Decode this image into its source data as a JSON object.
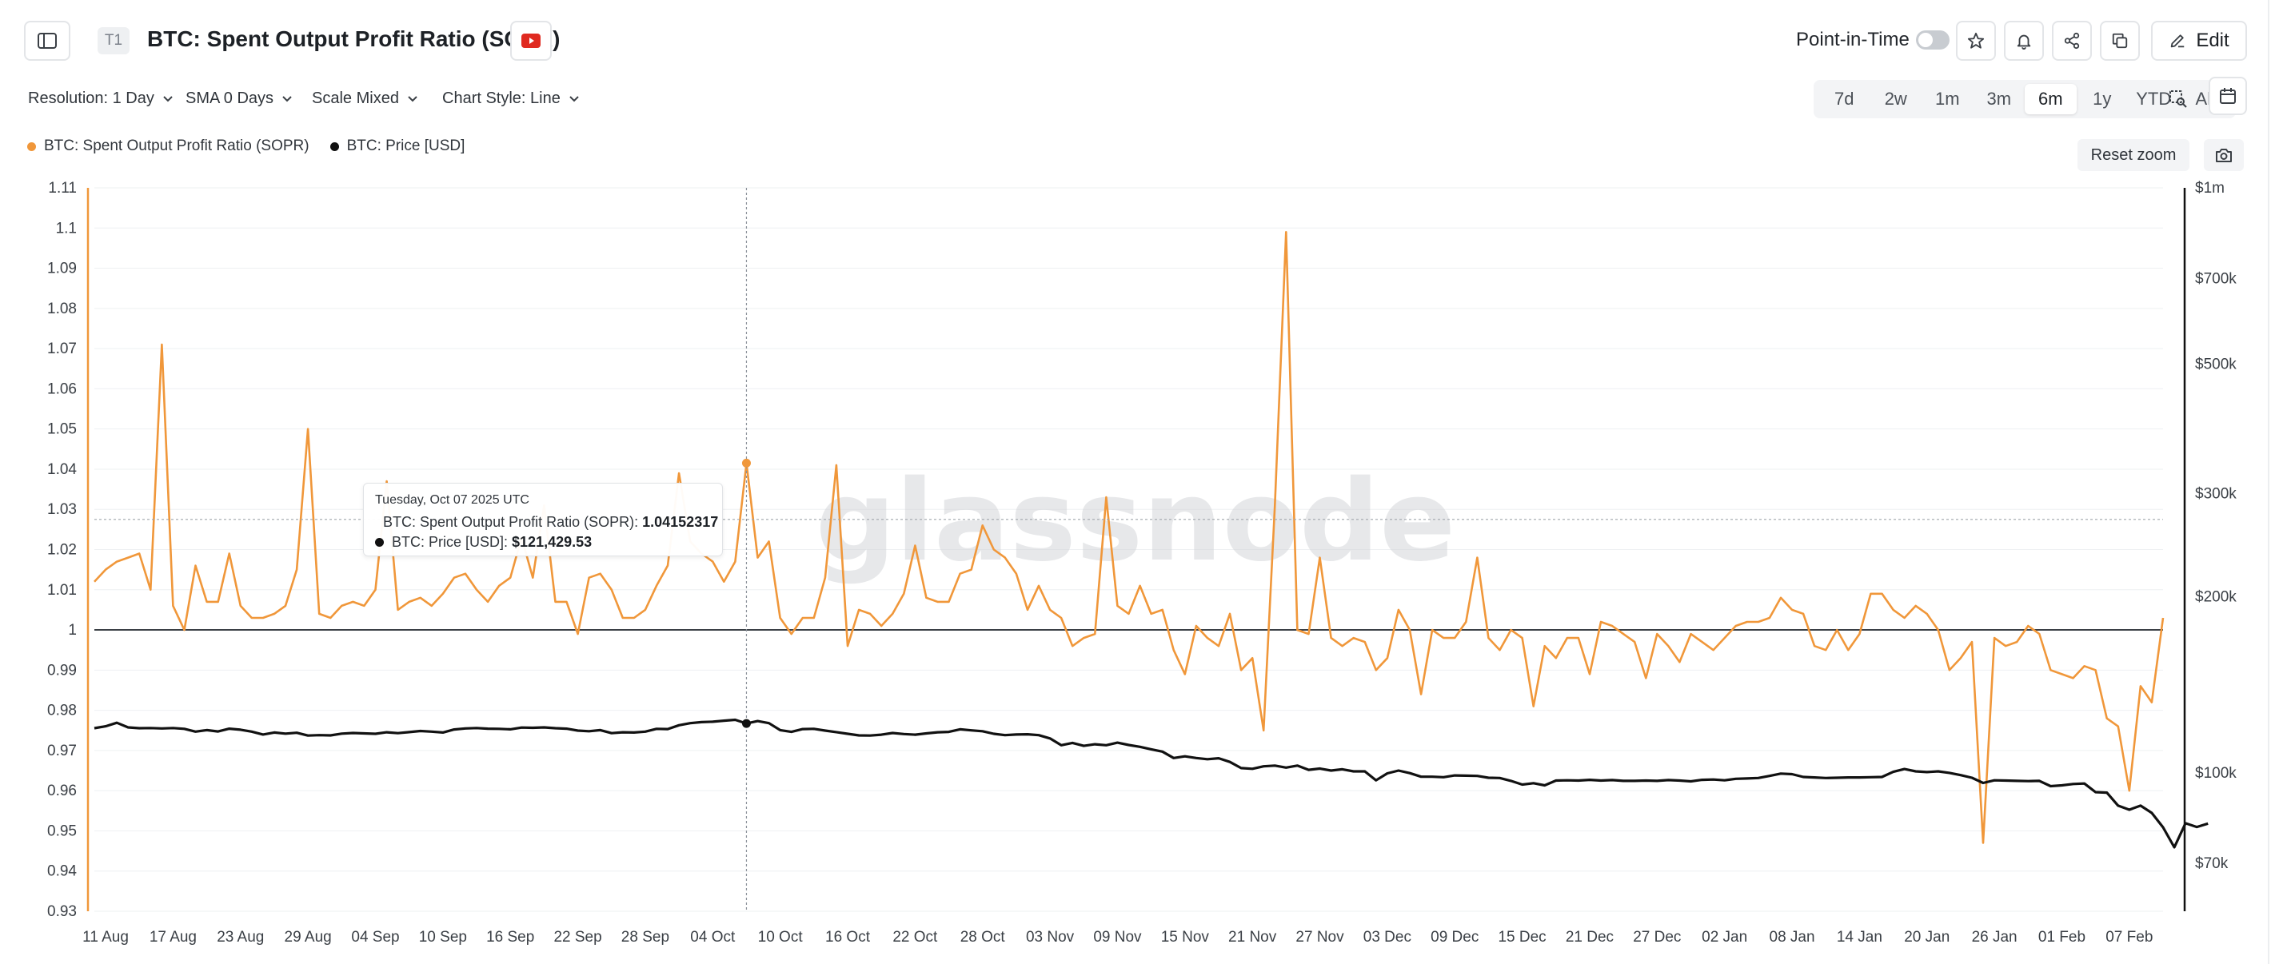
{
  "header": {
    "tag": "T1",
    "title": "BTC: Spent Output Profit Ratio (SOPR)",
    "point_in_time_label": "Point-in-Time",
    "point_in_time_on": false,
    "edit_label": "Edit"
  },
  "controls": {
    "resolution": "Resolution: 1 Day",
    "sma": "SMA 0 Days",
    "scale": "Scale Mixed",
    "chart_style": "Chart Style: Line",
    "ranges": [
      "7d",
      "2w",
      "1m",
      "3m",
      "6m",
      "1y",
      "YTD",
      "All"
    ],
    "active_range": "6m",
    "reset_zoom": "Reset zoom"
  },
  "legend": [
    {
      "label": "BTC: Spent Output Profit Ratio (SOPR)",
      "color": "#f0973a"
    },
    {
      "label": "BTC: Price [USD]",
      "color": "#111111"
    }
  ],
  "tooltip": {
    "date": "Tuesday, Oct 07 2025 UTC",
    "rows": [
      {
        "label": "BTC: Spent Output Profit Ratio (SOPR): ",
        "value": "1.04152317",
        "color": "#f0973a"
      },
      {
        "label": "BTC: Price [USD]: ",
        "value": "$121,429.53",
        "color": "#111111"
      }
    ]
  },
  "watermark": "glassnode",
  "chart_data": {
    "type": "line",
    "start_date": "2025-08-10",
    "x_tick_labels": [
      "11 Aug",
      "17 Aug",
      "23 Aug",
      "29 Aug",
      "04 Sep",
      "10 Sep",
      "16 Sep",
      "22 Sep",
      "28 Sep",
      "04 Oct",
      "10 Oct",
      "16 Oct",
      "22 Oct",
      "28 Oct",
      "03 Nov",
      "09 Nov",
      "15 Nov",
      "21 Nov",
      "27 Nov",
      "03 Dec",
      "09 Dec",
      "15 Dec",
      "21 Dec",
      "27 Dec",
      "02 Jan",
      "08 Jan",
      "14 Jan",
      "20 Jan",
      "26 Jan",
      "01 Feb",
      "07 Feb"
    ],
    "y_left": {
      "range": [
        0.93,
        1.11
      ],
      "ticks": [
        "0.93",
        "0.94",
        "0.95",
        "0.96",
        "0.97",
        "0.98",
        "0.99",
        "1",
        "1.01",
        "1.02",
        "1.03",
        "1.04",
        "1.05",
        "1.06",
        "1.07",
        "1.08",
        "1.09",
        "1.1",
        "1.11"
      ]
    },
    "y_right": {
      "scale": "log",
      "range": [
        58000,
        1000000
      ],
      "ticks": [
        {
          "label": "$70k",
          "value": 70000
        },
        {
          "label": "$100k",
          "value": 100000
        },
        {
          "label": "$200k",
          "value": 200000
        },
        {
          "label": "$300k",
          "value": 300000
        },
        {
          "label": "$500k",
          "value": 500000
        },
        {
          "label": "$700k",
          "value": 700000
        },
        {
          "label": "$1m",
          "value": 1000000
        }
      ]
    },
    "reference_line": 1,
    "crosshair_day": 58,
    "crosshair_level": 1.0275,
    "series": [
      {
        "name": "BTC: Spent Output Profit Ratio (SOPR)",
        "color": "#f0973a",
        "axis": "left",
        "values": [
          1.012,
          1.015,
          1.017,
          1.018,
          1.019,
          1.01,
          1.071,
          1.006,
          1.0,
          1.016,
          1.007,
          1.007,
          1.019,
          1.006,
          1.003,
          1.003,
          1.004,
          1.006,
          1.015,
          1.05,
          1.004,
          1.003,
          1.006,
          1.007,
          1.006,
          1.01,
          1.037,
          1.005,
          1.007,
          1.008,
          1.006,
          1.009,
          1.013,
          1.014,
          1.01,
          1.007,
          1.011,
          1.013,
          1.023,
          1.013,
          1.031,
          1.007,
          1.007,
          0.999,
          1.013,
          1.014,
          1.01,
          1.003,
          1.003,
          1.005,
          1.011,
          1.016,
          1.039,
          1.022,
          1.019,
          1.017,
          1.012,
          1.017,
          1.0415,
          1.018,
          1.022,
          1.003,
          0.999,
          1.003,
          1.003,
          1.013,
          1.041,
          0.996,
          1.005,
          1.004,
          1.001,
          1.004,
          1.009,
          1.021,
          1.008,
          1.007,
          1.007,
          1.014,
          1.015,
          1.026,
          1.02,
          1.018,
          1.014,
          1.005,
          1.011,
          1.005,
          1.003,
          0.996,
          0.998,
          0.999,
          1.033,
          1.006,
          1.004,
          1.011,
          1.004,
          1.005,
          0.995,
          0.989,
          1.001,
          0.998,
          0.996,
          1.004,
          0.99,
          0.993,
          0.975,
          1.031,
          1.099,
          1.0,
          0.999,
          1.018,
          0.998,
          0.996,
          0.998,
          0.997,
          0.99,
          0.993,
          1.005,
          1.0,
          0.984,
          1.0,
          0.998,
          0.998,
          1.002,
          1.018,
          0.998,
          0.995,
          1.0,
          0.998,
          0.981,
          0.996,
          0.993,
          0.998,
          0.998,
          0.989,
          1.002,
          1.001,
          0.999,
          0.997,
          0.988,
          0.999,
          0.996,
          0.992,
          0.999,
          0.997,
          0.995,
          0.998,
          1.001,
          1.002,
          1.002,
          1.003,
          1.008,
          1.005,
          1.004,
          0.996,
          0.995,
          1.0,
          0.995,
          0.999,
          1.009,
          1.009,
          1.005,
          1.003,
          1.006,
          1.004,
          1.0,
          0.99,
          0.993,
          0.997,
          0.947,
          0.998,
          0.996,
          0.997,
          1.001,
          0.999,
          0.99,
          0.989,
          0.988,
          0.991,
          0.99,
          0.978,
          0.976,
          0.96,
          0.986,
          0.982,
          1.003
        ]
      },
      {
        "name": "BTC: Price [USD]",
        "color": "#111111",
        "axis": "right",
        "values": [
          119200,
          120100,
          121800,
          119600,
          119200,
          119300,
          119100,
          119300,
          118900,
          117600,
          118300,
          117700,
          119000,
          118500,
          117600,
          116300,
          117200,
          116700,
          117100,
          115800,
          116000,
          115900,
          116700,
          117000,
          116800,
          116600,
          117300,
          116900,
          117400,
          117900,
          117600,
          117200,
          118600,
          119100,
          119300,
          119000,
          118900,
          118700,
          119500,
          119400,
          119600,
          119200,
          119000,
          118100,
          117800,
          118300,
          116900,
          117300,
          117200,
          117600,
          118900,
          118800,
          120600,
          121600,
          122100,
          122300,
          122800,
          123200,
          121430,
          122600,
          121600,
          118300,
          117500,
          118800,
          118900,
          118100,
          117400,
          116600,
          115900,
          115800,
          116200,
          117000,
          116500,
          116200,
          116800,
          117300,
          117500,
          118700,
          118200,
          117800,
          116600,
          116000,
          116300,
          116400,
          116000,
          114500,
          111500,
          112500,
          111200,
          111900,
          111500,
          112600,
          111600,
          110800,
          109700,
          108700,
          106000,
          106700,
          106000,
          105500,
          105900,
          104400,
          101900,
          101600,
          102600,
          102900,
          102100,
          102900,
          101200,
          101700,
          100900,
          101400,
          100600,
          100600,
          97100,
          99800,
          100900,
          99900,
          98500,
          98500,
          98300,
          99000,
          98900,
          98800,
          98100,
          98000,
          96900,
          95500,
          96000,
          95200,
          97000,
          97100,
          97000,
          97300,
          97000,
          97200,
          96900,
          96900,
          97000,
          96900,
          97200,
          97000,
          96700,
          97300,
          97400,
          97100,
          97700,
          97800,
          98000,
          98800,
          99700,
          99500,
          98400,
          98200,
          98000,
          98100,
          98200,
          98200,
          98300,
          98400,
          100400,
          101500,
          100600,
          100300,
          100600,
          100000,
          99100,
          98100,
          96100,
          97100,
          97000,
          96900,
          96800,
          96900,
          94900,
          95200,
          95700,
          95900,
          92700,
          92500,
          87900,
          86500,
          87900,
          85400,
          80700,
          74600,
          82000,
          80800,
          81900
        ]
      }
    ]
  }
}
